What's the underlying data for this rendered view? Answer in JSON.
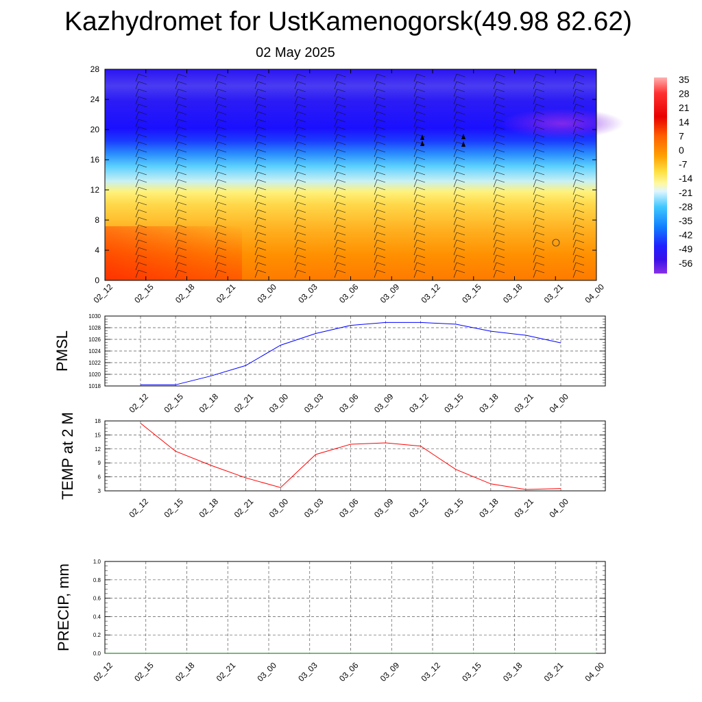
{
  "title": "Kazhydromet for UstKamenogorsk(49.98 82.62)",
  "subtitle": "02 May 2025",
  "chart_data": [
    {
      "type": "heatmap",
      "ylim": [
        0,
        28
      ],
      "yticks": [
        0,
        4,
        8,
        12,
        16,
        20,
        24,
        28
      ],
      "x": [
        "02_12",
        "02_15",
        "02_18",
        "02_21",
        "03_00",
        "03_03",
        "03_06",
        "03_09",
        "03_12",
        "03_15",
        "03_18",
        "03_21",
        "04_00"
      ],
      "colorbar_labels": [
        "35",
        "28",
        "21",
        "14",
        "7",
        "0",
        "-7",
        "-14",
        "-21",
        "-28",
        "-35",
        "-42",
        "-49",
        "-56"
      ],
      "colors": {
        "warm": "#ff2a00",
        "orange": "#ff9a00",
        "yellow": "#ffef3a",
        "cyan": "#28c0ff",
        "blue": "#1e10ff",
        "violet": "#7a2cee"
      }
    },
    {
      "type": "line",
      "ylabel": "PMSL",
      "ylim": [
        1018,
        1030
      ],
      "yticks": [
        1018,
        1020,
        1022,
        1024,
        1026,
        1028,
        1030
      ],
      "x": [
        "02_12",
        "02_15",
        "02_18",
        "02_21",
        "03_00",
        "03_03",
        "03_06",
        "03_09",
        "03_12",
        "03_15",
        "03_18",
        "03_21",
        "04_00"
      ],
      "values": [
        1018.2,
        1018.2,
        1019.7,
        1021.5,
        1025.0,
        1027.0,
        1028.4,
        1028.9,
        1028.9,
        1028.6,
        1027.4,
        1026.7,
        1025.4
      ],
      "color": "#0000ff"
    },
    {
      "type": "line",
      "ylabel": "TEMP at 2 M",
      "ylim": [
        3,
        18
      ],
      "yticks": [
        3,
        6,
        9,
        12,
        15,
        18
      ],
      "x": [
        "02_12",
        "02_15",
        "02_18",
        "02_21",
        "03_00",
        "03_03",
        "03_06",
        "03_09",
        "03_12",
        "03_15",
        "03_18",
        "03_21",
        "04_00"
      ],
      "values": [
        17.5,
        11.5,
        8.5,
        5.8,
        3.7,
        10.8,
        13.0,
        13.3,
        12.6,
        7.6,
        4.5,
        3.3,
        3.5
      ],
      "color": "#ff0000"
    },
    {
      "type": "line",
      "ylabel": "PRECIP, mm",
      "ylim": [
        0.0,
        1.0
      ],
      "yticks": [
        "0.0",
        "0.2",
        "0.4",
        "0.6",
        "0.8",
        "1.0"
      ],
      "x": [
        "02_12",
        "02_15",
        "02_18",
        "02_21",
        "03_00",
        "03_03",
        "03_06",
        "03_09",
        "03_12",
        "03_15",
        "03_18",
        "03_21",
        "04_00"
      ],
      "values": [
        0,
        0,
        0,
        0,
        0,
        0,
        0,
        0,
        0,
        0,
        0,
        0,
        0
      ],
      "color": "#006400"
    }
  ]
}
